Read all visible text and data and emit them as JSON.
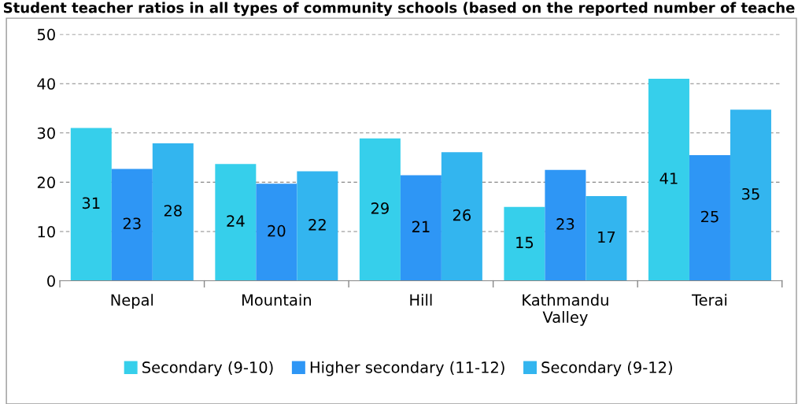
{
  "chart_data": {
    "type": "bar",
    "title": "Student teacher ratios in all types of community schools (based on the reported number of teache",
    "categories": [
      "Nepal",
      "Mountain",
      "Hill",
      "Kathmandu\nValley",
      "Terai"
    ],
    "series": [
      {
        "name": "Secondary (9-10)",
        "color": "#36cfeb",
        "values": [
          31,
          23.7,
          28.9,
          15,
          41
        ],
        "value_labels": [
          "31",
          "24",
          "29",
          "15",
          "41"
        ]
      },
      {
        "name": "Higher secondary (11-12)",
        "color": "#2e96f5",
        "values": [
          22.7,
          19.7,
          21.4,
          22.5,
          25.5
        ],
        "value_labels": [
          "23",
          "20",
          "21",
          "23",
          "25"
        ]
      },
      {
        "name": "Secondary (9-12)",
        "color": "#33b5ef",
        "values": [
          27.9,
          22.2,
          26.1,
          17.2,
          34.7
        ],
        "value_labels": [
          "28",
          "22",
          "26",
          "17",
          "35"
        ]
      }
    ],
    "ylim": [
      0,
      50
    ],
    "yticks": [
      0,
      10,
      20,
      30,
      40,
      50
    ],
    "grid": "y",
    "legend": "bottom"
  }
}
